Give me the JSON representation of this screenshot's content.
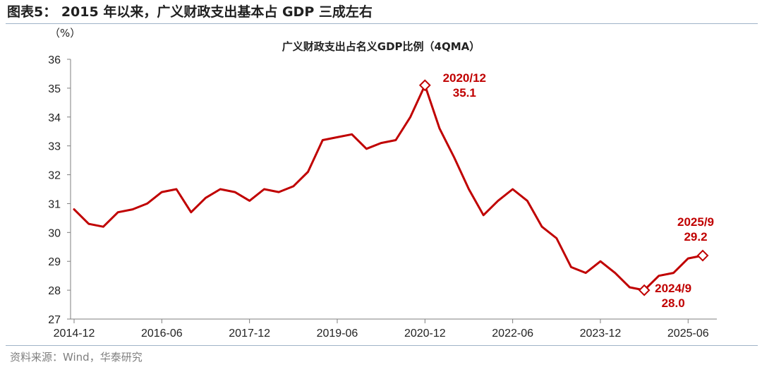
{
  "figure": {
    "title": "图表5： 2015 年以来，广义财政支出基本占 GDP 三成左右",
    "source": "资料来源：Wind，华泰研究"
  },
  "colors": {
    "line": "#c00000",
    "axis": "#7f7f7f",
    "text": "#222222"
  },
  "chart_data": {
    "type": "line",
    "title": "广义财政支出占名义GDP比例（4QMA）",
    "ylabel": "（%）",
    "xlabel": "",
    "ylim": [
      27,
      36
    ],
    "yticks": [
      27,
      28,
      29,
      30,
      31,
      32,
      33,
      34,
      35,
      36
    ],
    "xticks": [
      "2014-12",
      "2016-06",
      "2017-12",
      "2019-06",
      "2020-12",
      "2022-06",
      "2023-12",
      "2025-06"
    ],
    "series": [
      {
        "name": "广义财政支出占名义GDP比例（4QMA）",
        "x": [
          "2014-12",
          "2015-03",
          "2015-06",
          "2015-09",
          "2015-12",
          "2016-03",
          "2016-06",
          "2016-09",
          "2016-12",
          "2017-03",
          "2017-06",
          "2017-09",
          "2017-12",
          "2018-03",
          "2018-06",
          "2018-09",
          "2018-12",
          "2019-03",
          "2019-06",
          "2019-09",
          "2019-12",
          "2020-03",
          "2020-06",
          "2020-09",
          "2020-12",
          "2021-03",
          "2021-06",
          "2021-09",
          "2021-12",
          "2022-03",
          "2022-06",
          "2022-09",
          "2022-12",
          "2023-03",
          "2023-06",
          "2023-09",
          "2023-12",
          "2024-03",
          "2024-06",
          "2024-09",
          "2024-12",
          "2025-03",
          "2025-06",
          "2025-09"
        ],
        "values": [
          30.8,
          30.3,
          30.2,
          30.7,
          30.8,
          31.0,
          31.4,
          31.5,
          30.7,
          31.2,
          31.5,
          31.4,
          31.1,
          31.5,
          31.4,
          31.6,
          32.1,
          33.2,
          33.3,
          33.4,
          32.9,
          33.1,
          33.2,
          34.0,
          35.1,
          33.6,
          32.6,
          31.5,
          30.6,
          31.1,
          31.5,
          31.1,
          30.2,
          29.8,
          28.8,
          28.6,
          29.0,
          28.6,
          28.1,
          28.0,
          28.5,
          28.6,
          29.1,
          29.2
        ]
      }
    ],
    "annotations": [
      {
        "x": "2020-12",
        "value": 35.1,
        "label_date": "2020/12",
        "label_value": "35.1",
        "position": "right"
      },
      {
        "x": "2024-09",
        "value": 28.0,
        "label_date": "2024/9",
        "label_value": "28.0",
        "position": "below-right"
      },
      {
        "x": "2025-09",
        "value": 29.2,
        "label_date": "2025/9",
        "label_value": "29.2",
        "position": "above"
      }
    ]
  }
}
